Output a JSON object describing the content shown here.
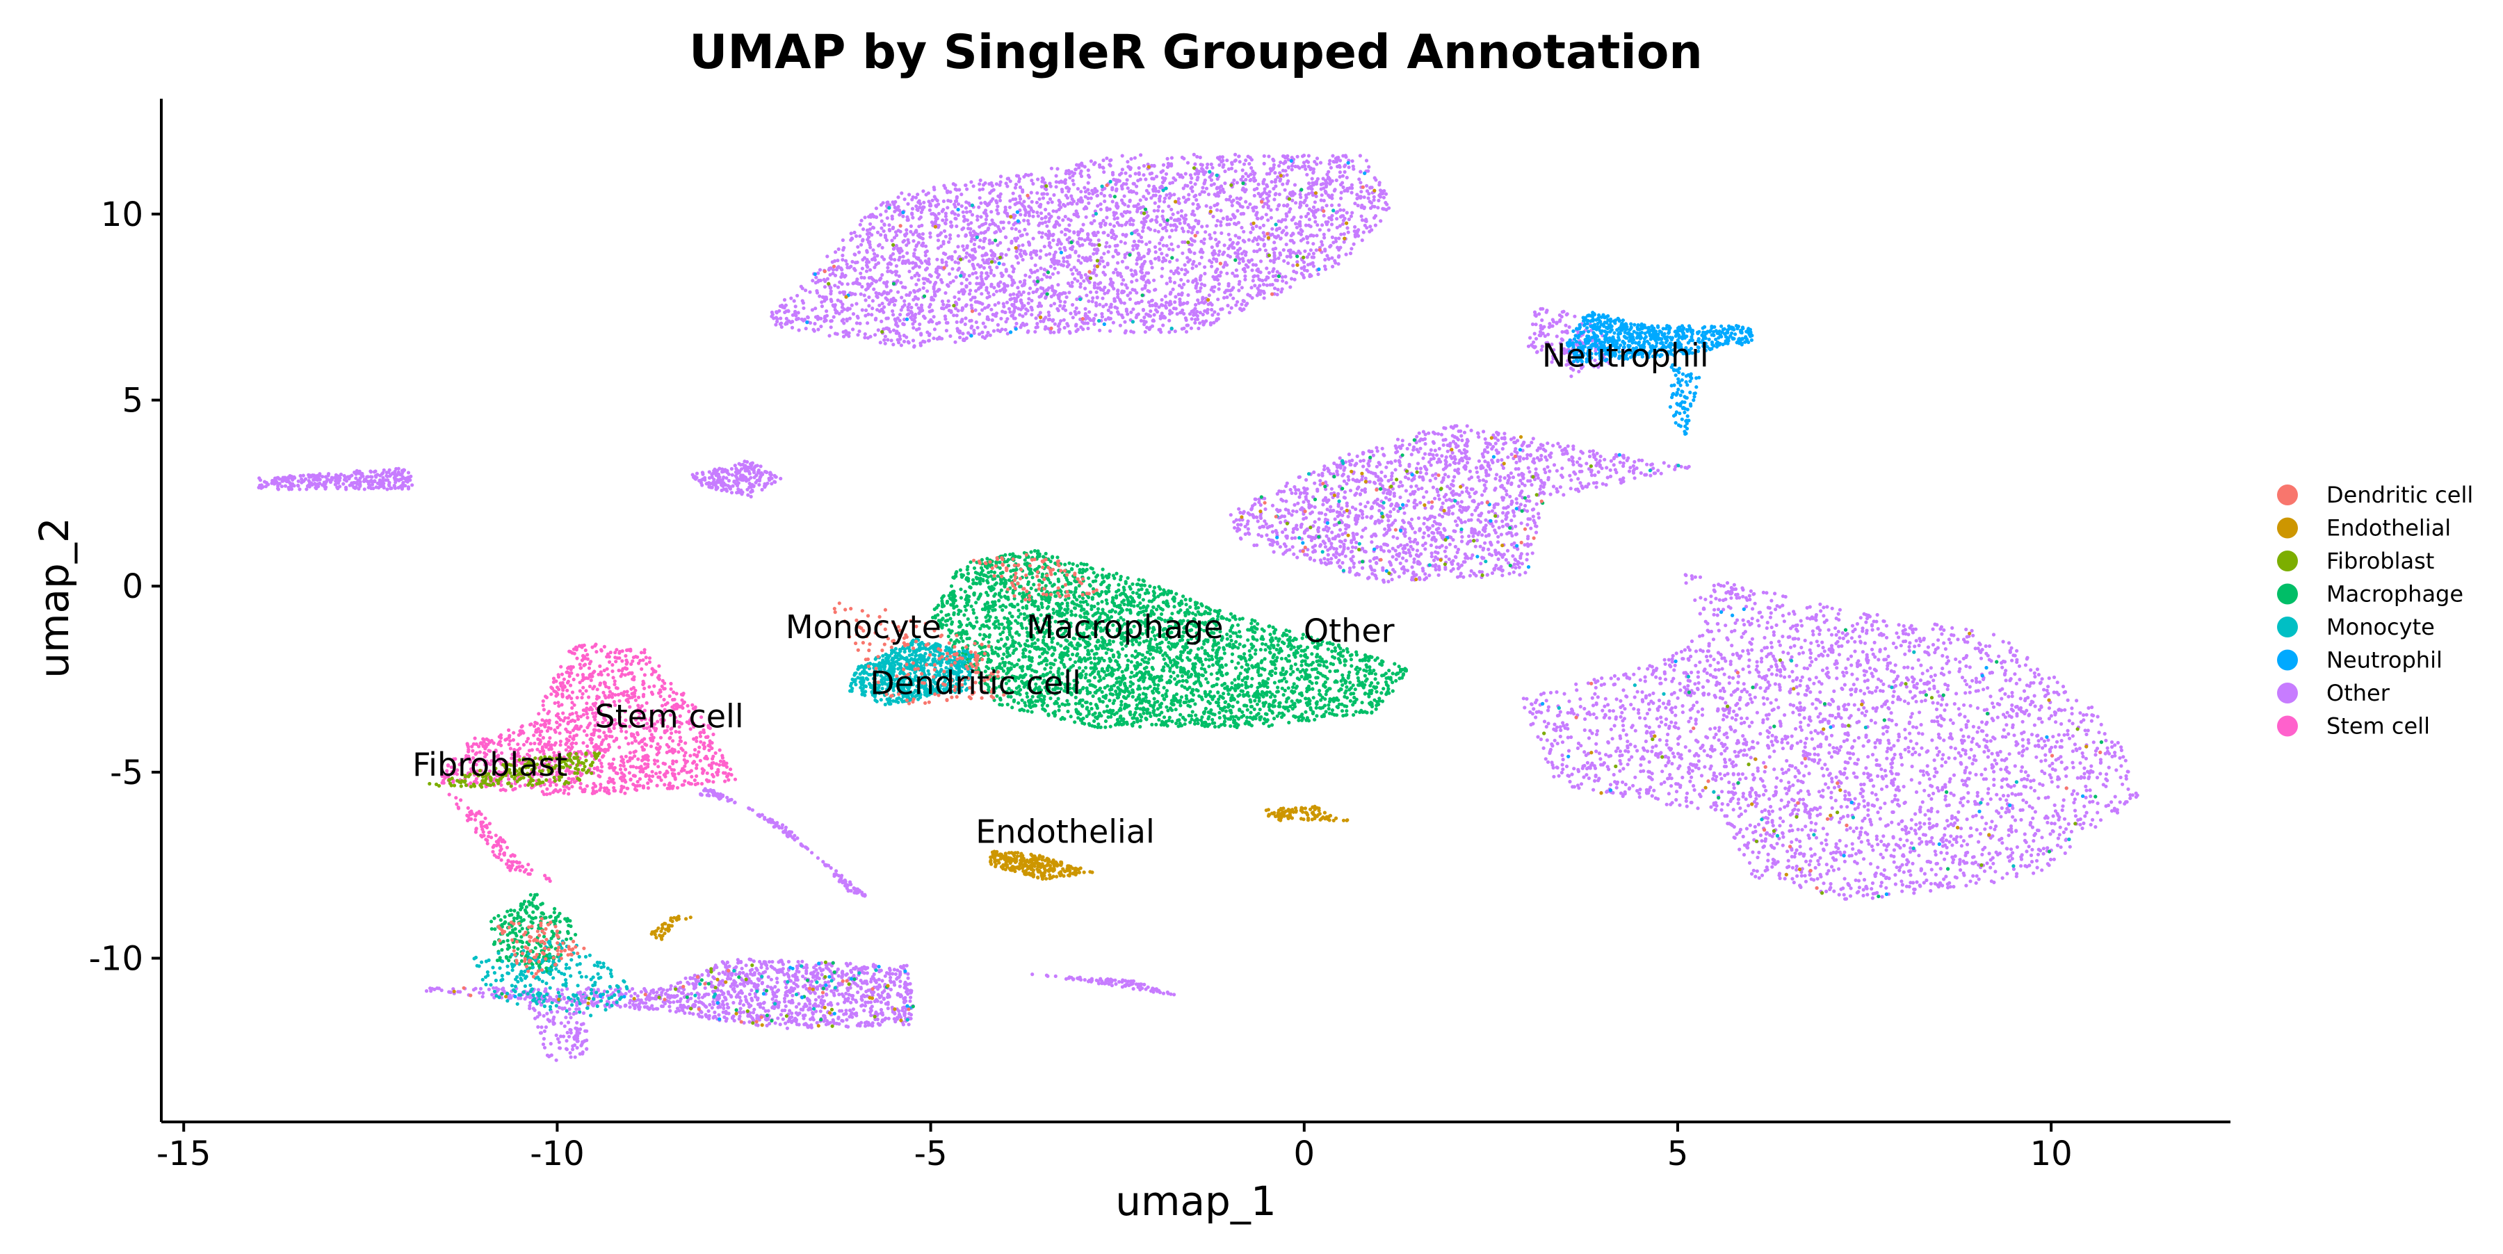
{
  "chart_data": {
    "type": "scatter",
    "title": "UMAP by SingleR Grouped Annotation",
    "xlabel": "umap_1",
    "ylabel": "umap_2",
    "xlim": [
      -15.3,
      12.4
    ],
    "ylim": [
      -14.4,
      13.1
    ],
    "xticks": [
      -15,
      -10,
      -5,
      0,
      5,
      10
    ],
    "xtick_labels": [
      "-15",
      "-10",
      "-5",
      "0",
      "5",
      "10"
    ],
    "yticks": [
      -10,
      -5,
      0,
      5,
      10
    ],
    "ytick_labels": [
      "-10",
      "-5",
      "0",
      "5",
      "10"
    ],
    "grid": false,
    "legend_position": "right",
    "point_size_note": "dense point cloud; clusters summarized by centroid and spread",
    "series": [
      {
        "name": "Dendritic cell",
        "color": "#F8766D"
      },
      {
        "name": "Endothelial",
        "color": "#CD9600"
      },
      {
        "name": "Fibroblast",
        "color": "#7CAE00"
      },
      {
        "name": "Macrophage",
        "color": "#00BE67"
      },
      {
        "name": "Monocyte",
        "color": "#00BFC4"
      },
      {
        "name": "Neutrophil",
        "color": "#00A9FF"
      },
      {
        "name": "Other",
        "color": "#C77CFF"
      },
      {
        "name": "Stem cell",
        "color": "#FF61CC"
      }
    ],
    "clusters": [
      {
        "series": "Other",
        "shape": "poly",
        "poly": [
          [
            -14,
            2.9
          ],
          [
            -12,
            3.2
          ],
          [
            -11.9,
            2.6
          ],
          [
            -14,
            2.6
          ]
        ],
        "n": 300
      },
      {
        "series": "Other",
        "shape": "poly",
        "poly": [
          [
            -8.2,
            3.0
          ],
          [
            -7.4,
            3.4
          ],
          [
            -7.0,
            2.9
          ],
          [
            -7.4,
            2.4
          ],
          [
            -8.1,
            2.7
          ]
        ],
        "n": 220
      },
      {
        "series": "Other",
        "shape": "poly",
        "poly": [
          [
            -7.2,
            7.2
          ],
          [
            -5.6,
            10.5
          ],
          [
            -2.4,
            11.6
          ],
          [
            0.8,
            11.6
          ],
          [
            1.2,
            10.2
          ],
          [
            0.5,
            8.6
          ],
          [
            -1.5,
            6.8
          ],
          [
            -3.8,
            6.8
          ],
          [
            -5.2,
            6.4
          ],
          [
            -7.0,
            6.9
          ]
        ],
        "n": 3600
      },
      {
        "series": "Other",
        "shape": "poly",
        "poly": [
          [
            -1.0,
            2.0
          ],
          [
            0.5,
            3.5
          ],
          [
            2.0,
            4.4
          ],
          [
            4.6,
            3.4
          ],
          [
            5.2,
            3.2
          ],
          [
            3.2,
            2.3
          ],
          [
            3.0,
            0.3
          ],
          [
            1.0,
            0.1
          ],
          [
            -0.9,
            1.2
          ]
        ],
        "n": 1600
      },
      {
        "series": "Other",
        "shape": "poly",
        "poly": [
          [
            5.0,
            0.4
          ],
          [
            7.2,
            -0.6
          ],
          [
            9.3,
            -1.3
          ],
          [
            10.8,
            -3.6
          ],
          [
            11.2,
            -5.6
          ],
          [
            9.8,
            -7.8
          ],
          [
            7.4,
            -8.5
          ],
          [
            6.0,
            -7.8
          ],
          [
            5.6,
            -6.2
          ],
          [
            3.3,
            -5.3
          ],
          [
            2.9,
            -3.0
          ],
          [
            4.7,
            -2.1
          ],
          [
            5.4,
            -1.2
          ]
        ],
        "n": 4800
      },
      {
        "series": "Other",
        "shape": "poly",
        "poly": [
          [
            -11.8,
            -10.8
          ],
          [
            -8.6,
            -10.8
          ],
          [
            -7.7,
            -10.0
          ],
          [
            -5.3,
            -10.2
          ],
          [
            -5.2,
            -11.8
          ],
          [
            -7.0,
            -11.9
          ],
          [
            -8.8,
            -11.4
          ],
          [
            -11.8,
            -10.9
          ]
        ],
        "n": 1200
      },
      {
        "series": "Other",
        "shape": "poly",
        "poly": [
          [
            -3.9,
            -10.4
          ],
          [
            -2.3,
            -10.6
          ],
          [
            -1.7,
            -11.0
          ],
          [
            -3.4,
            -10.5
          ]
        ],
        "n": 90
      },
      {
        "series": "Other",
        "shape": "poly",
        "poly": [
          [
            -8.0,
            -5.4
          ],
          [
            -6.9,
            -6.5
          ],
          [
            -6.1,
            -8.2
          ],
          [
            -5.8,
            -8.4
          ],
          [
            -6.3,
            -7.6
          ],
          [
            -7.5,
            -5.9
          ],
          [
            -8.1,
            -5.6
          ]
        ],
        "n": 150
      },
      {
        "series": "Other",
        "shape": "poly",
        "poly": [
          [
            3.1,
            7.6
          ],
          [
            3.8,
            7.2
          ],
          [
            4.4,
            6.2
          ],
          [
            3.6,
            5.6
          ],
          [
            3.0,
            6.4
          ]
        ],
        "n": 160
      },
      {
        "series": "Neutrophil",
        "shape": "poly",
        "poly": [
          [
            3.5,
            6.6
          ],
          [
            3.8,
            7.4
          ],
          [
            4.6,
            7.0
          ],
          [
            6.0,
            7.0
          ],
          [
            6.0,
            6.5
          ],
          [
            5.0,
            6.2
          ],
          [
            3.6,
            6.0
          ]
        ],
        "n": 700
      },
      {
        "series": "Neutrophil",
        "shape": "poly",
        "poly": [
          [
            4.9,
            6.0
          ],
          [
            5.3,
            5.6
          ],
          [
            5.1,
            4.0
          ],
          [
            4.9,
            4.6
          ]
        ],
        "n": 80
      },
      {
        "series": "Macrophage",
        "shape": "poly",
        "poly": [
          [
            -5.0,
            -0.8
          ],
          [
            -4.6,
            0.6
          ],
          [
            -3.6,
            1.0
          ],
          [
            -2.2,
            0.2
          ],
          [
            -1.2,
            -0.6
          ],
          [
            0.5,
            -1.6
          ],
          [
            1.4,
            -2.2
          ],
          [
            1.0,
            -3.4
          ],
          [
            -0.6,
            -3.8
          ],
          [
            -2.8,
            -3.8
          ],
          [
            -4.1,
            -3.2
          ],
          [
            -4.6,
            -2.0
          ]
        ],
        "n": 3200
      },
      {
        "series": "Monocyte",
        "shape": "poly",
        "poly": [
          [
            -6.0,
            -2.2
          ],
          [
            -5.2,
            -1.4
          ],
          [
            -4.4,
            -1.8
          ],
          [
            -4.5,
            -2.8
          ],
          [
            -5.6,
            -3.2
          ],
          [
            -6.1,
            -2.8
          ]
        ],
        "n": 700
      },
      {
        "series": "Dendritic cell",
        "shape": "poly",
        "poly": [
          [
            -6.4,
            -0.4
          ],
          [
            -5.6,
            -0.6
          ],
          [
            -4.2,
            -1.6
          ],
          [
            -4.0,
            -3.0
          ],
          [
            -5.5,
            -3.2
          ],
          [
            -6.1,
            -1.4
          ]
        ],
        "n": 160
      },
      {
        "series": "Dendritic cell",
        "shape": "poly",
        "poly": [
          [
            -4.5,
            0.8
          ],
          [
            -3.4,
            0.9
          ],
          [
            -2.6,
            -0.2
          ],
          [
            -3.8,
            -0.4
          ]
        ],
        "n": 90
      },
      {
        "series": "Stem cell",
        "shape": "poly",
        "poly": [
          [
            -10.0,
            -2.2
          ],
          [
            -9.8,
            -1.6
          ],
          [
            -8.9,
            -1.5
          ],
          [
            -8.6,
            -2.2
          ],
          [
            -8.0,
            -3.6
          ],
          [
            -7.6,
            -5.2
          ],
          [
            -8.8,
            -5.6
          ],
          [
            -10.4,
            -5.6
          ],
          [
            -11.6,
            -5.3
          ],
          [
            -11.3,
            -4.2
          ],
          [
            -10.3,
            -3.6
          ]
        ],
        "n": 1300
      },
      {
        "series": "Stem cell",
        "shape": "poly",
        "poly": [
          [
            -11.5,
            -5.5
          ],
          [
            -11.1,
            -6.6
          ],
          [
            -10.7,
            -7.6
          ],
          [
            -10.0,
            -8.0
          ],
          [
            -10.5,
            -7.3
          ],
          [
            -11.0,
            -6.1
          ]
        ],
        "n": 110
      },
      {
        "series": "Fibroblast",
        "shape": "poly",
        "poly": [
          [
            -11.9,
            -5.4
          ],
          [
            -10.4,
            -4.6
          ],
          [
            -9.4,
            -4.4
          ],
          [
            -9.6,
            -5.3
          ],
          [
            -10.8,
            -5.4
          ]
        ],
        "n": 200
      },
      {
        "series": "Endothelial",
        "shape": "poly",
        "poly": [
          [
            -4.2,
            -7.1
          ],
          [
            -3.6,
            -7.2
          ],
          [
            -2.8,
            -7.7
          ],
          [
            -3.5,
            -7.9
          ],
          [
            -4.2,
            -7.5
          ]
        ],
        "n": 280
      },
      {
        "series": "Endothelial",
        "shape": "poly",
        "poly": [
          [
            -0.6,
            -6.0
          ],
          [
            0.2,
            -5.9
          ],
          [
            0.6,
            -6.3
          ],
          [
            -0.4,
            -6.3
          ]
        ],
        "n": 90
      },
      {
        "series": "Endothelial",
        "shape": "poly",
        "poly": [
          [
            -8.8,
            -9.4
          ],
          [
            -8.4,
            -8.8
          ],
          [
            -8.2,
            -8.9
          ],
          [
            -8.6,
            -9.5
          ]
        ],
        "n": 40
      },
      {
        "series": "Macrophage",
        "shape": "poly",
        "poly": [
          [
            -10.9,
            -9.0
          ],
          [
            -10.3,
            -8.2
          ],
          [
            -9.7,
            -9.2
          ],
          [
            -10.1,
            -10.4
          ],
          [
            -10.8,
            -10.2
          ]
        ],
        "n": 240
      },
      {
        "series": "Monocyte",
        "shape": "poly",
        "poly": [
          [
            -11.2,
            -10.0
          ],
          [
            -9.8,
            -9.4
          ],
          [
            -9.0,
            -10.8
          ],
          [
            -9.4,
            -11.6
          ],
          [
            -10.8,
            -11.2
          ]
        ],
        "n": 220
      },
      {
        "series": "Dendritic cell",
        "shape": "poly",
        "poly": [
          [
            -11.0,
            -9.2
          ],
          [
            -10.2,
            -8.8
          ],
          [
            -9.6,
            -9.8
          ],
          [
            -10.4,
            -10.6
          ]
        ],
        "n": 90
      },
      {
        "series": "Other",
        "shape": "poly",
        "poly": [
          [
            -10.4,
            -11.2
          ],
          [
            -9.6,
            -11.0
          ],
          [
            -9.6,
            -12.6
          ],
          [
            -10.1,
            -12.8
          ]
        ],
        "n": 120
      }
    ],
    "cluster_labels": [
      {
        "text": "Neutrophil",
        "x": 4.3,
        "y": 5.9
      },
      {
        "text": "Monocyte",
        "x": -5.9,
        "y": -1.4
      },
      {
        "text": "Macrophage",
        "x": -2.4,
        "y": -1.4
      },
      {
        "text": "Other",
        "x": 0.6,
        "y": -1.5
      },
      {
        "text": "Dendritic cell",
        "x": -4.4,
        "y": -2.9
      },
      {
        "text": "Stem cell",
        "x": -8.5,
        "y": -3.8
      },
      {
        "text": "Fibroblast",
        "x": -10.9,
        "y": -5.1
      },
      {
        "text": "Endothelial",
        "x": -3.2,
        "y": -6.9
      }
    ]
  }
}
